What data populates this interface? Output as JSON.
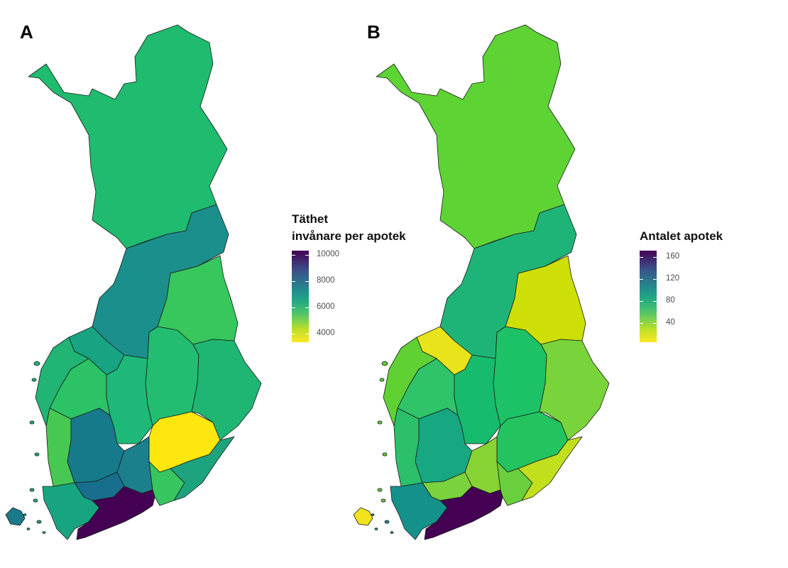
{
  "panels": [
    {
      "label": "A",
      "legend": {
        "title_line1": "Täthet",
        "title_line2": "invånare per apotek",
        "ticks": [
          "10000",
          "8000",
          "6000",
          "4000"
        ]
      }
    },
    {
      "label": "B",
      "legend": {
        "title_line1": "Antalet apotek",
        "ticks": [
          "160",
          "120",
          "80",
          "40"
        ]
      }
    }
  ],
  "colors": {
    "viridis_dark": "#440154",
    "viridis_blue": "#2c728e",
    "viridis_teal": "#21908d",
    "viridis_green": "#22a884",
    "viridis_lightgreen": "#44bf70",
    "viridis_lime": "#7ad151",
    "viridis_yellowgreen": "#bddf26",
    "viridis_yellow": "#fde725"
  },
  "regions": [
    {
      "id": "lapland",
      "fillA": "#1fbb6e",
      "fillB": "#5dd334"
    },
    {
      "id": "north-ostrobothnia",
      "fillA": "#1b8f8c",
      "fillB": "#1fb477"
    },
    {
      "id": "kainuu",
      "fillA": "#37c75c",
      "fillB": "#cddf07"
    },
    {
      "id": "central-ostrobothnia",
      "fillA": "#17a482",
      "fillB": "#e8e31a"
    },
    {
      "id": "ostrobothnia",
      "fillA": "#20b475",
      "fillB": "#5fd133"
    },
    {
      "id": "south-ostrobothnia",
      "fillA": "#2cc266",
      "fillB": "#2fc36a"
    },
    {
      "id": "central-finland",
      "fillA": "#1eb878",
      "fillB": "#17bb6e"
    },
    {
      "id": "north-savo",
      "fillA": "#22bd70",
      "fillB": "#1dc266"
    },
    {
      "id": "north-karelia",
      "fillA": "#1fb673",
      "fillB": "#79d33a"
    },
    {
      "id": "satakunta",
      "fillA": "#47c853",
      "fillB": "#2bc06a"
    },
    {
      "id": "pirkanmaa",
      "fillA": "#177a8b",
      "fillB": "#17a882"
    },
    {
      "id": "south-savo",
      "fillA": "#fde70f",
      "fillB": "#23c45f"
    },
    {
      "id": "kanta-hame",
      "fillA": "#186f8d",
      "fillB": "#7ad23c"
    },
    {
      "id": "paijat-hame",
      "fillA": "#1b7f8c",
      "fillB": "#87d334"
    },
    {
      "id": "kymenlaakso",
      "fillA": "#37c560",
      "fillB": "#69cf3c"
    },
    {
      "id": "south-karelia",
      "fillA": "#1ea37f",
      "fillB": "#c2df1e"
    },
    {
      "id": "southwest-finland",
      "fillA": "#17a480",
      "fillB": "#15918c"
    },
    {
      "id": "uusimaa",
      "fillA": "#440154",
      "fillB": "#440154"
    },
    {
      "id": "aland",
      "fillA": "#1a7a8c",
      "fillB": "#f2e41c"
    }
  ]
}
